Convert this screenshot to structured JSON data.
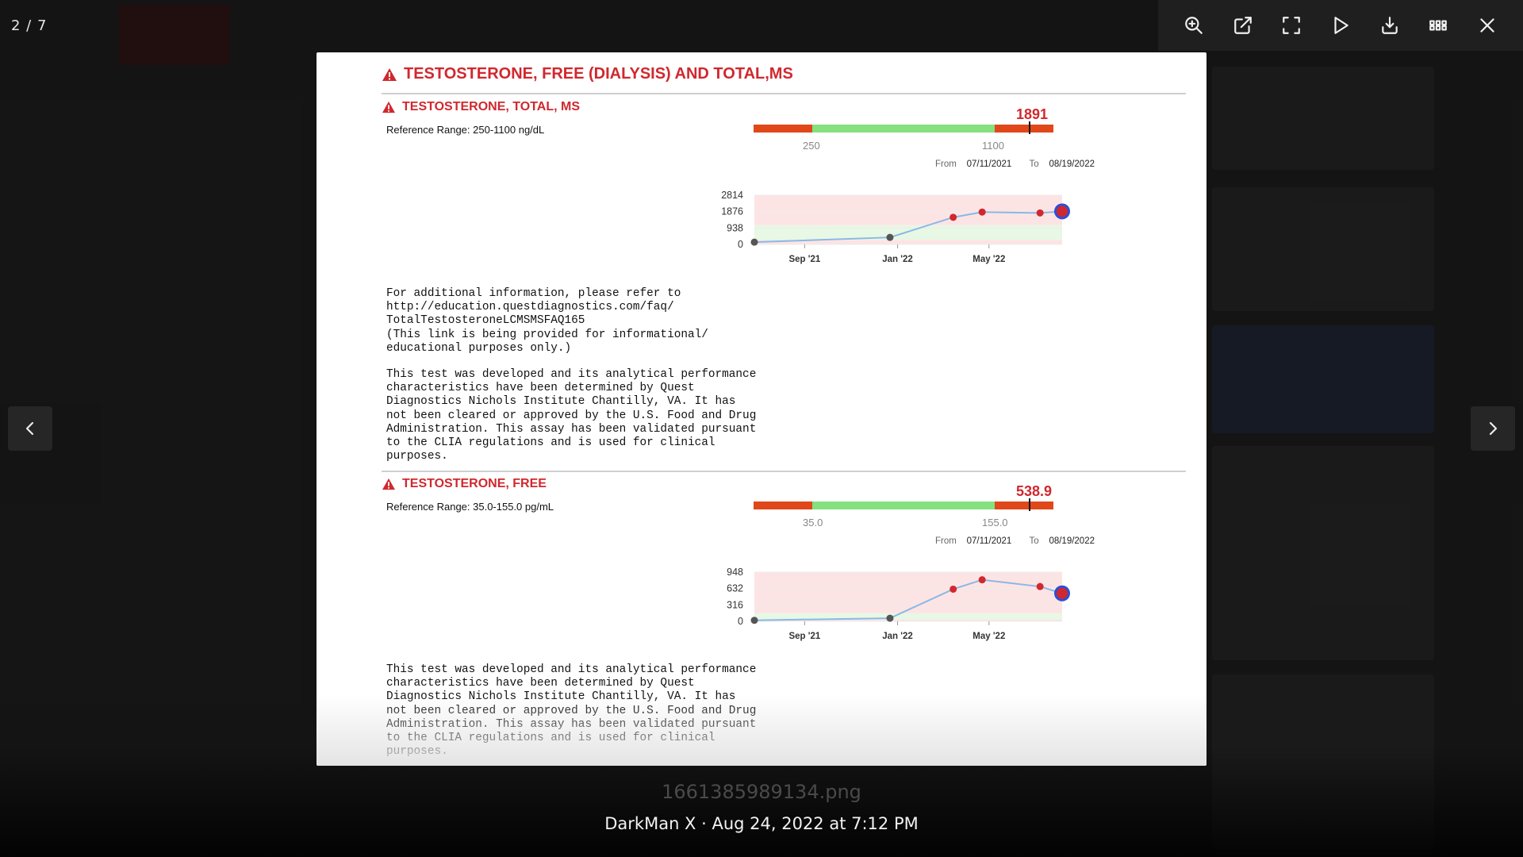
{
  "viewer": {
    "counter": "2 / 7",
    "filename": "1661385989134.png",
    "caption": "DarkMan X · Aug 24, 2022 at 7:12 PM",
    "toolbar": [
      "zoom-in-icon",
      "open-external-icon",
      "fullscreen-icon",
      "play-icon",
      "download-icon",
      "grid-icon",
      "close-icon"
    ]
  },
  "report": {
    "main_title": "TESTOSTERONE, FREE (DIALYSIS) AND TOTAL,MS",
    "colors": {
      "accent_red": "#d0282e",
      "range_red": "#e0481a",
      "range_green": "#85e07e",
      "line_blue": "#8ab8e6"
    },
    "tests": [
      {
        "title": "TESTOSTERONE, TOTAL, MS",
        "reference": "Reference Range: 250-1100 ng/dL",
        "current_value": "1891",
        "low_label": "250",
        "high_label": "1100",
        "from_label": "From",
        "from_date": "07/11/2021",
        "to_label": "To",
        "to_date": "08/19/2022",
        "note_block_1": "For additional information, please refer to\nhttp://education.questdiagnostics.com/faq/\nTotalTestosteroneLCMSMSFAQ165\n(This link is being provided for informational/\neducational purposes only.)",
        "note_block_2": "This test was developed and its analytical performance\ncharacteristics have been determined by Quest\nDiagnostics Nichols Institute Chantilly, VA. It has\nnot been cleared or approved by the U.S. Food and Drug\nAdministration. This assay has been validated pursuant\nto the CLIA regulations and is used for clinical\npurposes."
      },
      {
        "title": "TESTOSTERONE, FREE",
        "reference": "Reference Range: 35.0-155.0 pg/mL",
        "current_value": "538.9",
        "low_label": "35.0",
        "high_label": "155.0",
        "from_label": "From",
        "from_date": "07/11/2021",
        "to_label": "To",
        "to_date": "08/19/2022",
        "note_block_2": "This test was developed and its analytical performance\ncharacteristics have been determined by Quest\nDiagnostics Nichols Institute Chantilly, VA. It has\nnot been cleared or approved by the U.S. Food and Drug\nAdministration. This assay has been validated pursuant\nto the CLIA regulations and is used for clinical\npurposes."
      }
    ]
  },
  "chart_data": [
    {
      "type": "line",
      "yticks": [
        "2814",
        "1876",
        "938",
        "0"
      ],
      "ylim": [
        0,
        2814
      ],
      "xticks": [
        "Sep '21",
        "Jan '22",
        "May '22"
      ],
      "ref_range": [
        250,
        1100
      ],
      "series": [
        {
          "x": [
            "2021-07-11",
            "2022-01-05",
            "2022-03-29",
            "2022-05-06",
            "2022-07-21",
            "2022-08-19"
          ],
          "values": [
            130,
            400,
            1550,
            1850,
            1800,
            1891
          ]
        }
      ]
    },
    {
      "type": "line",
      "yticks": [
        "948",
        "632",
        "316",
        "0"
      ],
      "ylim": [
        0,
        948
      ],
      "xticks": [
        "Sep '21",
        "Jan '22",
        "May '22"
      ],
      "ref_range": [
        35,
        155
      ],
      "series": [
        {
          "x": [
            "2021-07-11",
            "2022-01-05",
            "2022-03-29",
            "2022-05-06",
            "2022-07-21",
            "2022-08-19"
          ],
          "values": [
            20,
            60,
            620,
            800,
            670,
            538.9
          ]
        }
      ]
    }
  ]
}
